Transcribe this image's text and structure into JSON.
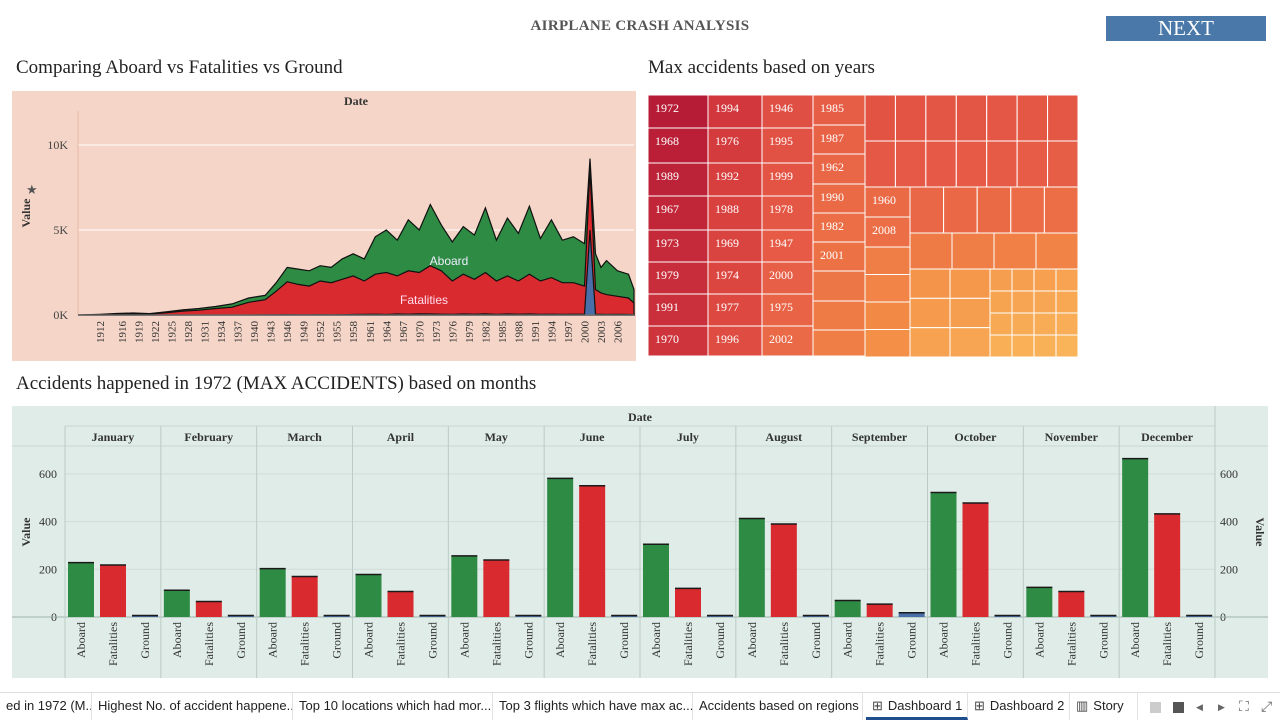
{
  "page": {
    "title": "AIRPLANE CRASH ANALYSIS",
    "next_label": "NEXT"
  },
  "tabs": [
    {
      "label": "ed in 1972 (M...",
      "icon": ""
    },
    {
      "label": "Highest No. of accident happene...",
      "icon": ""
    },
    {
      "label": "Top 10 locations which had mor...",
      "icon": ""
    },
    {
      "label": "Top 3 flights which have max ac...",
      "icon": ""
    },
    {
      "label": "Accidents based on regions",
      "icon": ""
    },
    {
      "label": "Dashboard 1",
      "icon": "dashboard-icon",
      "active": true
    },
    {
      "label": "Dashboard 2",
      "icon": "dashboard-icon"
    },
    {
      "label": "Story",
      "icon": "story-icon"
    }
  ],
  "colors": {
    "aboard": "#2e8b43",
    "fatalities": "#d92b2f",
    "ground": "#4a6fa8",
    "area_bg": "#f4d5c7",
    "bar_bg": "#dfece8",
    "next_bg": "#4a78a8"
  },
  "chart_data": [
    {
      "id": "aboard-fatalities-ground",
      "type": "area",
      "title": "Comparing Aboard vs Fatalities vs Ground",
      "column_header": "Date",
      "ylabel": "Value",
      "ylim": [
        0,
        12000
      ],
      "yticks": [
        {
          "v": 0,
          "label": "0K"
        },
        {
          "v": 5000,
          "label": "5K"
        },
        {
          "v": 10000,
          "label": "10K"
        }
      ],
      "xticks": [
        "1912",
        "1916",
        "1919",
        "1922",
        "1925",
        "1928",
        "1931",
        "1934",
        "1937",
        "1940",
        "1943",
        "1946",
        "1949",
        "1952",
        "1955",
        "1958",
        "1961",
        "1964",
        "1967",
        "1970",
        "1973",
        "1976",
        "1979",
        "1982",
        "1985",
        "1988",
        "1991",
        "1994",
        "1997",
        "2000",
        "2003",
        "2006"
      ],
      "x": [
        1908,
        1912,
        1915,
        1918,
        1921,
        1924,
        1927,
        1930,
        1933,
        1936,
        1939,
        1942,
        1944,
        1946,
        1948,
        1950,
        1952,
        1954,
        1956,
        1958,
        1960,
        1962,
        1964,
        1966,
        1968,
        1970,
        1972,
        1974,
        1976,
        1978,
        1980,
        1982,
        1984,
        1986,
        1988,
        1990,
        1992,
        1994,
        1996,
        1998,
        2000,
        2001,
        2002,
        2003,
        2004,
        2006,
        2008,
        2009
      ],
      "series": [
        {
          "name": "Aboard",
          "values": [
            0,
            40,
            90,
            120,
            80,
            180,
            300,
            380,
            500,
            650,
            1000,
            1150,
            1900,
            2800,
            2700,
            2600,
            2900,
            2800,
            3300,
            3600,
            3300,
            4600,
            5000,
            4400,
            5600,
            5000,
            6500,
            5300,
            4300,
            5200,
            4700,
            6300,
            4400,
            5700,
            4800,
            6400,
            4500,
            5600,
            4400,
            4600,
            4200,
            9200,
            3600,
            2800,
            3200,
            2600,
            2400,
            1500
          ]
        },
        {
          "name": "Fatalities",
          "values": [
            0,
            20,
            60,
            80,
            60,
            130,
            230,
            280,
            380,
            460,
            750,
            900,
            1400,
            1950,
            1800,
            1700,
            2000,
            1900,
            2100,
            2300,
            2000,
            2400,
            2500,
            2300,
            2600,
            2500,
            2900,
            2600,
            2000,
            2400,
            2100,
            2500,
            2000,
            2300,
            2000,
            2400,
            2000,
            2200,
            1900,
            1900,
            1700,
            8600,
            1500,
            1300,
            1200,
            1100,
            1000,
            700
          ]
        },
        {
          "name": "Ground",
          "values": [
            0,
            0,
            0,
            0,
            0,
            0,
            0,
            0,
            0,
            0,
            0,
            10,
            10,
            20,
            10,
            10,
            20,
            10,
            20,
            30,
            40,
            50,
            30,
            60,
            50,
            70,
            60,
            50,
            40,
            60,
            50,
            70,
            40,
            60,
            50,
            60,
            40,
            50,
            40,
            50,
            50,
            5000,
            50,
            40,
            30,
            40,
            30,
            20
          ]
        }
      ]
    },
    {
      "id": "max-accidents-years",
      "type": "treemap",
      "title": "Max accidents based on years",
      "labels": [
        "1972",
        "1968",
        "1989",
        "1967",
        "1973",
        "1979",
        "1991",
        "1970",
        "1994",
        "1976",
        "1992",
        "1988",
        "1969",
        "1974",
        "1977",
        "1996",
        "1946",
        "1995",
        "1999",
        "1978",
        "1947",
        "2000",
        "1975",
        "2002",
        "1985",
        "1987",
        "1962",
        "1990",
        "1982",
        "2001",
        "1960",
        "2008"
      ]
    },
    {
      "id": "accidents-1972-months",
      "type": "bar",
      "title": "Accidents happened in 1972 (MAX ACCIDENTS) based on months",
      "column_header": "Date",
      "ylabel": "Value",
      "ylim": [
        -20,
        700
      ],
      "yticks": [
        0,
        200,
        400,
        600
      ],
      "measures": [
        "Aboard",
        "Fatalities",
        "Ground"
      ],
      "categories": [
        "January",
        "February",
        "March",
        "April",
        "May",
        "June",
        "July",
        "August",
        "September",
        "October",
        "November",
        "December"
      ],
      "series": [
        {
          "name": "Aboard",
          "values": [
            228,
            112,
            203,
            178,
            256,
            581,
            305,
            413,
            69,
            522,
            124,
            664
          ]
        },
        {
          "name": "Fatalities",
          "values": [
            218,
            65,
            170,
            107,
            239,
            550,
            120,
            390,
            54,
            478,
            107,
            432
          ]
        },
        {
          "name": "Ground",
          "values": [
            0,
            0,
            0,
            0,
            0,
            2,
            0,
            0,
            18,
            0,
            0,
            2
          ]
        }
      ]
    }
  ]
}
